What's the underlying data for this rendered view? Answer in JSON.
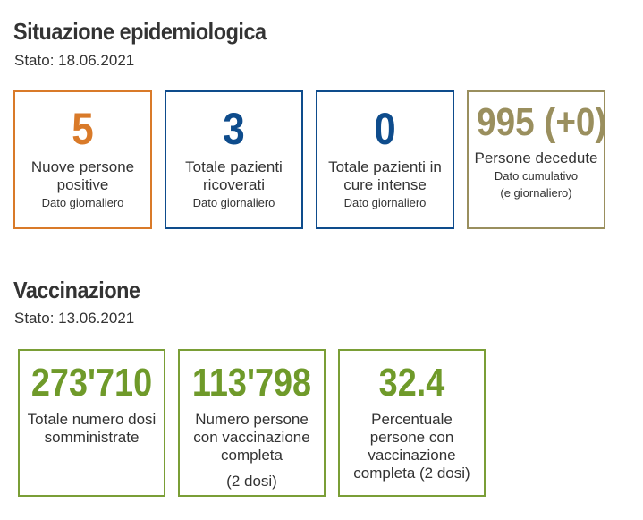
{
  "epidemiology": {
    "title": "Situazione epidemiologica",
    "date": "Stato: 18.06.2021",
    "cards": [
      {
        "value": "5",
        "label": "Nuove persone positive",
        "sub": "Dato giornaliero",
        "color": "#d97a29"
      },
      {
        "value": "3",
        "label": "Totale pazienti ricoverati",
        "sub": "Dato giornaliero",
        "color": "#0e4c8c"
      },
      {
        "value": "0",
        "label": "Totale pazienti in cure intense",
        "sub": "Dato giornaliero",
        "color": "#0e4c8c"
      },
      {
        "value": "995 (+0)",
        "label": "Persone decedute",
        "sub": "Dato cumulativo",
        "sub2": "(e giornaliero)",
        "color": "#9a8f5e"
      }
    ]
  },
  "vaccination": {
    "title": "Vaccinazione",
    "date": "Stato: 13.06.2021",
    "color": "#6f9a2a",
    "cards": [
      {
        "value": "273'710",
        "label": "Totale numero dosi somministrate"
      },
      {
        "value": "113'798",
        "label": "Numero persone con vaccinazione completa",
        "label2": "(2 dosi)"
      },
      {
        "value": "32.4",
        "label": "Percentuale persone con vaccinazione completa (2 dosi)"
      }
    ]
  }
}
